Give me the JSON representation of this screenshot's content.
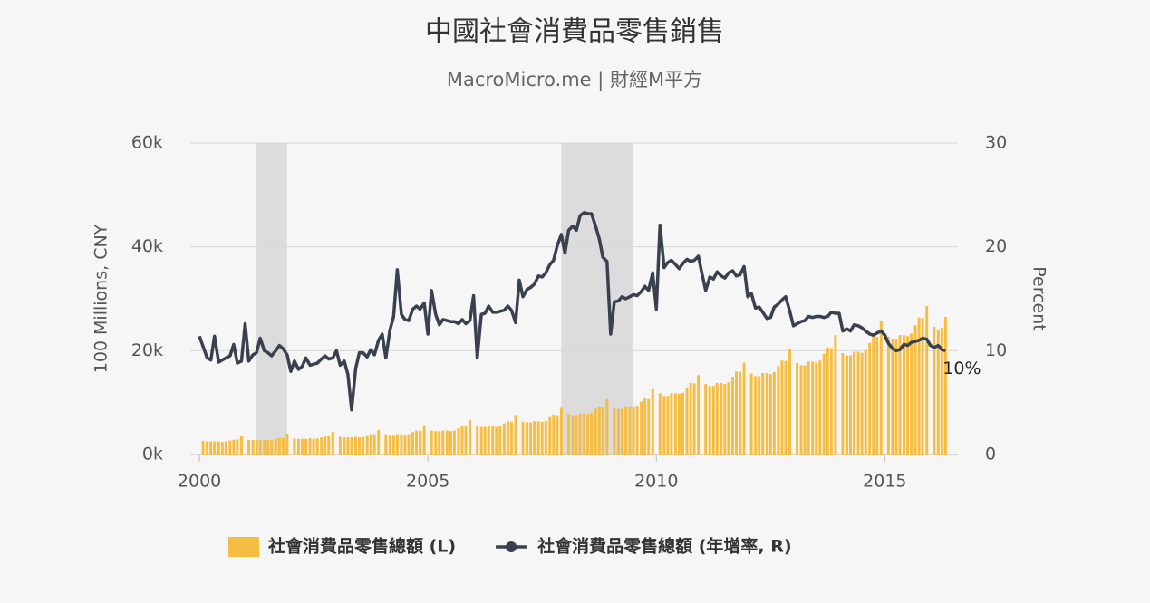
{
  "chart_data": {
    "type": "bar-line",
    "title": "中國社會消費品零售銷售",
    "subtitle": "MacroMicro.me | 財經M平方",
    "y_label": "100 Millions, CNY",
    "y2_label": "Percent",
    "xlim": [
      1999.8,
      2016.6
    ],
    "xticks": [
      2000,
      2005,
      2010,
      2015
    ],
    "ylim": [
      0,
      60000
    ],
    "yticks": [
      {
        "value": 0,
        "label": "0k"
      },
      {
        "value": 20000,
        "label": "20k"
      },
      {
        "value": 40000,
        "label": "40k"
      },
      {
        "value": 60000,
        "label": "60k"
      }
    ],
    "y2lim": [
      0,
      30
    ],
    "y2ticks": [
      0,
      10,
      20,
      30
    ],
    "grid": true,
    "legend": "bottom",
    "shaded_ranges": [
      [
        2001.25,
        2001.92
      ],
      [
        2007.92,
        2009.5
      ]
    ],
    "x": [
      2000,
      2000.08,
      2000.17,
      2000.25,
      2000.33,
      2000.42,
      2000.5,
      2000.58,
      2000.67,
      2000.75,
      2000.83,
      2000.92,
      2001,
      2001.08,
      2001.17,
      2001.25,
      2001.33,
      2001.42,
      2001.5,
      2001.58,
      2001.67,
      2001.75,
      2001.83,
      2001.92,
      2002,
      2002.08,
      2002.17,
      2002.25,
      2002.33,
      2002.42,
      2002.5,
      2002.58,
      2002.67,
      2002.75,
      2002.83,
      2002.92,
      2003,
      2003.08,
      2003.17,
      2003.25,
      2003.33,
      2003.42,
      2003.5,
      2003.58,
      2003.67,
      2003.75,
      2003.83,
      2003.92,
      2004,
      2004.08,
      2004.17,
      2004.25,
      2004.33,
      2004.42,
      2004.5,
      2004.58,
      2004.67,
      2004.75,
      2004.83,
      2004.92,
      2005,
      2005.08,
      2005.17,
      2005.25,
      2005.33,
      2005.42,
      2005.5,
      2005.58,
      2005.67,
      2005.75,
      2005.83,
      2005.92,
      2006,
      2006.08,
      2006.17,
      2006.25,
      2006.33,
      2006.42,
      2006.5,
      2006.58,
      2006.67,
      2006.75,
      2006.83,
      2006.92,
      2007,
      2007.08,
      2007.17,
      2007.25,
      2007.33,
      2007.42,
      2007.5,
      2007.58,
      2007.67,
      2007.75,
      2007.83,
      2007.92,
      2008,
      2008.08,
      2008.17,
      2008.25,
      2008.33,
      2008.42,
      2008.5,
      2008.58,
      2008.67,
      2008.75,
      2008.83,
      2008.92,
      2009,
      2009.08,
      2009.17,
      2009.25,
      2009.33,
      2009.42,
      2009.5,
      2009.58,
      2009.67,
      2009.75,
      2009.83,
      2009.92,
      2010,
      2010.08,
      2010.17,
      2010.25,
      2010.33,
      2010.42,
      2010.5,
      2010.58,
      2010.67,
      2010.75,
      2010.83,
      2010.92,
      2011,
      2011.08,
      2011.17,
      2011.25,
      2011.33,
      2011.42,
      2011.5,
      2011.58,
      2011.67,
      2011.75,
      2011.83,
      2011.92,
      2012,
      2012.08,
      2012.17,
      2012.25,
      2012.33,
      2012.42,
      2012.5,
      2012.58,
      2012.67,
      2012.75,
      2012.83,
      2012.92,
      2013,
      2013.08,
      2013.17,
      2013.25,
      2013.33,
      2013.42,
      2013.5,
      2013.58,
      2013.67,
      2013.75,
      2013.83,
      2013.92,
      2014,
      2014.08,
      2014.17,
      2014.25,
      2014.33,
      2014.42,
      2014.5,
      2014.58,
      2014.67,
      2014.75,
      2014.83,
      2014.92,
      2015,
      2015.08,
      2015.17,
      2015.25,
      2015.33,
      2015.42,
      2015.5,
      2015.58,
      2015.67,
      2015.75,
      2015.83,
      2015.92,
      2016,
      2016.08,
      2016.17,
      2016.25,
      2016.33
    ],
    "series": [
      {
        "name": "社會消費品零售總額 (L)",
        "type": "bar",
        "color": "#f6bd43",
        "values": [
          null,
          2600,
          2500,
          2500,
          2500,
          2500,
          2400,
          2500,
          2700,
          2800,
          2900,
          3600,
          null,
          2800,
          2800,
          2800,
          2800,
          2800,
          2800,
          2800,
          3000,
          3200,
          3200,
          4000,
          null,
          3100,
          3000,
          3000,
          3000,
          3100,
          3000,
          3100,
          3300,
          3500,
          3500,
          4400,
          null,
          3400,
          3300,
          3300,
          3300,
          3400,
          3300,
          3400,
          3700,
          3900,
          3900,
          4700,
          null,
          3900,
          3800,
          3800,
          3900,
          3900,
          3800,
          3900,
          4300,
          4600,
          4600,
          5600,
          null,
          4600,
          4500,
          4500,
          4600,
          4600,
          4500,
          4600,
          5100,
          5500,
          5400,
          6600,
          null,
          5400,
          5300,
          5300,
          5400,
          5400,
          5300,
          5400,
          6000,
          6400,
          6300,
          7600,
          null,
          6300,
          6200,
          6200,
          6400,
          6400,
          6300,
          6500,
          7200,
          7700,
          7600,
          9000,
          null,
          7800,
          7600,
          7600,
          7900,
          7900,
          7800,
          8000,
          8800,
          9300,
          9200,
          10700,
          null,
          8900,
          8800,
          8800,
          9300,
          9300,
          9200,
          9400,
          10200,
          10800,
          10700,
          12600,
          null,
          11800,
          11300,
          11300,
          11800,
          11800,
          11700,
          11900,
          12900,
          13800,
          13700,
          15300,
          null,
          13600,
          13200,
          13200,
          13800,
          13800,
          13600,
          13900,
          15000,
          16000,
          15900,
          17700,
          null,
          15600,
          15100,
          15100,
          15700,
          15700,
          15500,
          15900,
          17000,
          18100,
          18000,
          20300,
          null,
          17600,
          17200,
          17200,
          17900,
          17900,
          17700,
          18100,
          19400,
          20600,
          20500,
          23000,
          null,
          19500,
          19100,
          19100,
          19800,
          19800,
          19600,
          20100,
          21500,
          22800,
          22700,
          25800,
          null,
          22700,
          22300,
          22300,
          23000,
          23000,
          22800,
          23300,
          24900,
          26400,
          26300,
          28600,
          null,
          24600,
          24000,
          24400,
          26500
        ]
      },
      {
        "name": "社會消費品零售總額 (年增率, R)",
        "type": "line",
        "axis": "y2",
        "color": "#3b404e",
        "values": [
          11.4,
          10.4,
          9.3,
          9.1,
          11.4,
          8.9,
          9.1,
          9.3,
          9.5,
          10.6,
          8.8,
          9.0,
          12.6,
          9.0,
          9.6,
          9.8,
          11.2,
          10.0,
          9.8,
          9.5,
          10.0,
          10.5,
          10.2,
          9.6,
          8.0,
          9.0,
          8.2,
          8.5,
          9.3,
          8.6,
          8.7,
          8.8,
          9.2,
          9.5,
          9.2,
          9.3,
          10.0,
          8.6,
          9.0,
          7.7,
          4.3,
          8.3,
          9.8,
          9.8,
          9.4,
          10.1,
          9.6,
          11.0,
          11.6,
          9.3,
          12.0,
          13.3,
          17.8,
          13.5,
          13.0,
          12.9,
          14.0,
          14.3,
          14.0,
          14.6,
          11.6,
          15.8,
          13.5,
          12.5,
          13.0,
          12.9,
          12.8,
          12.8,
          12.6,
          13.0,
          12.6,
          12.9,
          15.3,
          9.3,
          13.5,
          13.6,
          14.3,
          13.7,
          13.7,
          13.8,
          13.9,
          14.3,
          13.9,
          12.7,
          16.8,
          15.2,
          15.9,
          16.1,
          16.4,
          17.2,
          17.1,
          17.5,
          18.3,
          18.7,
          20.1,
          21.2,
          19.4,
          21.6,
          22.0,
          21.6,
          23.0,
          23.3,
          23.2,
          23.2,
          22.0,
          20.8,
          19.0,
          18.6,
          11.6,
          14.7,
          14.8,
          15.2,
          15.0,
          15.2,
          15.4,
          15.3,
          15.7,
          16.2,
          15.8,
          17.5,
          14.0,
          22.1,
          18.0,
          18.5,
          18.7,
          18.3,
          17.9,
          18.4,
          18.8,
          18.6,
          18.7,
          19.1,
          17.4,
          15.8,
          17.1,
          16.9,
          17.6,
          17.2,
          17.0,
          17.5,
          17.7,
          17.2,
          17.3,
          18.1,
          15.2,
          15.5,
          14.1,
          14.2,
          13.7,
          13.1,
          13.2,
          14.2,
          14.5,
          14.9,
          15.2,
          13.8,
          12.4,
          12.6,
          12.8,
          12.9,
          13.3,
          13.2,
          13.3,
          13.3,
          13.2,
          13.3,
          13.7,
          13.6,
          13.6,
          11.9,
          12.1,
          11.9,
          12.5,
          12.4,
          12.2,
          11.9,
          11.6,
          11.5,
          11.7,
          11.9,
          11.5,
          10.7,
          10.2,
          10.0,
          10.1,
          10.6,
          10.5,
          10.8,
          10.9,
          11.0,
          11.2,
          11.1,
          10.5,
          10.3,
          10.5,
          10.1,
          10.0
        ],
        "value_labels": [
          null,
          null,
          null,
          null,
          null,
          null,
          null,
          null,
          null,
          null,
          null,
          null,
          null,
          null,
          null,
          null,
          null,
          null,
          null,
          null,
          null,
          null,
          null,
          null,
          null,
          null,
          null,
          null,
          null,
          null,
          null,
          null,
          null,
          null,
          null,
          null,
          null,
          null,
          null,
          null,
          null,
          null,
          null,
          null,
          null,
          null,
          null,
          null,
          null,
          null,
          null,
          null,
          null,
          null,
          null,
          null,
          null,
          null,
          null,
          null,
          null,
          null,
          null,
          null,
          null,
          null,
          null,
          null,
          null,
          null,
          null,
          null,
          null,
          null,
          null,
          null,
          null,
          null,
          null,
          null,
          null,
          null,
          null,
          null,
          null,
          null,
          null,
          null,
          null,
          null,
          null,
          null,
          null,
          null,
          null,
          null,
          null,
          null,
          null,
          null,
          null,
          null,
          null,
          null,
          null,
          null,
          null,
          null,
          null,
          null,
          null,
          null,
          null,
          null,
          null,
          null,
          null,
          null,
          null,
          null,
          null,
          null,
          null,
          null,
          null,
          null,
          null,
          null,
          null,
          null,
          null,
          null,
          null,
          null,
          null,
          null,
          null,
          null,
          null,
          null,
          null,
          null,
          null,
          null,
          null,
          null,
          null,
          null,
          null,
          null,
          null,
          null,
          null,
          null,
          null,
          null,
          null,
          null,
          null,
          null,
          null,
          null,
          null,
          null,
          null,
          null,
          null,
          null,
          null,
          null,
          null,
          null,
          null,
          null,
          null,
          null,
          null,
          null,
          null,
          null,
          null,
          null,
          null,
          null,
          null,
          null,
          null,
          null,
          null,
          null,
          null,
          null,
          null,
          null,
          null,
          null,
          "10%"
        ]
      }
    ]
  }
}
